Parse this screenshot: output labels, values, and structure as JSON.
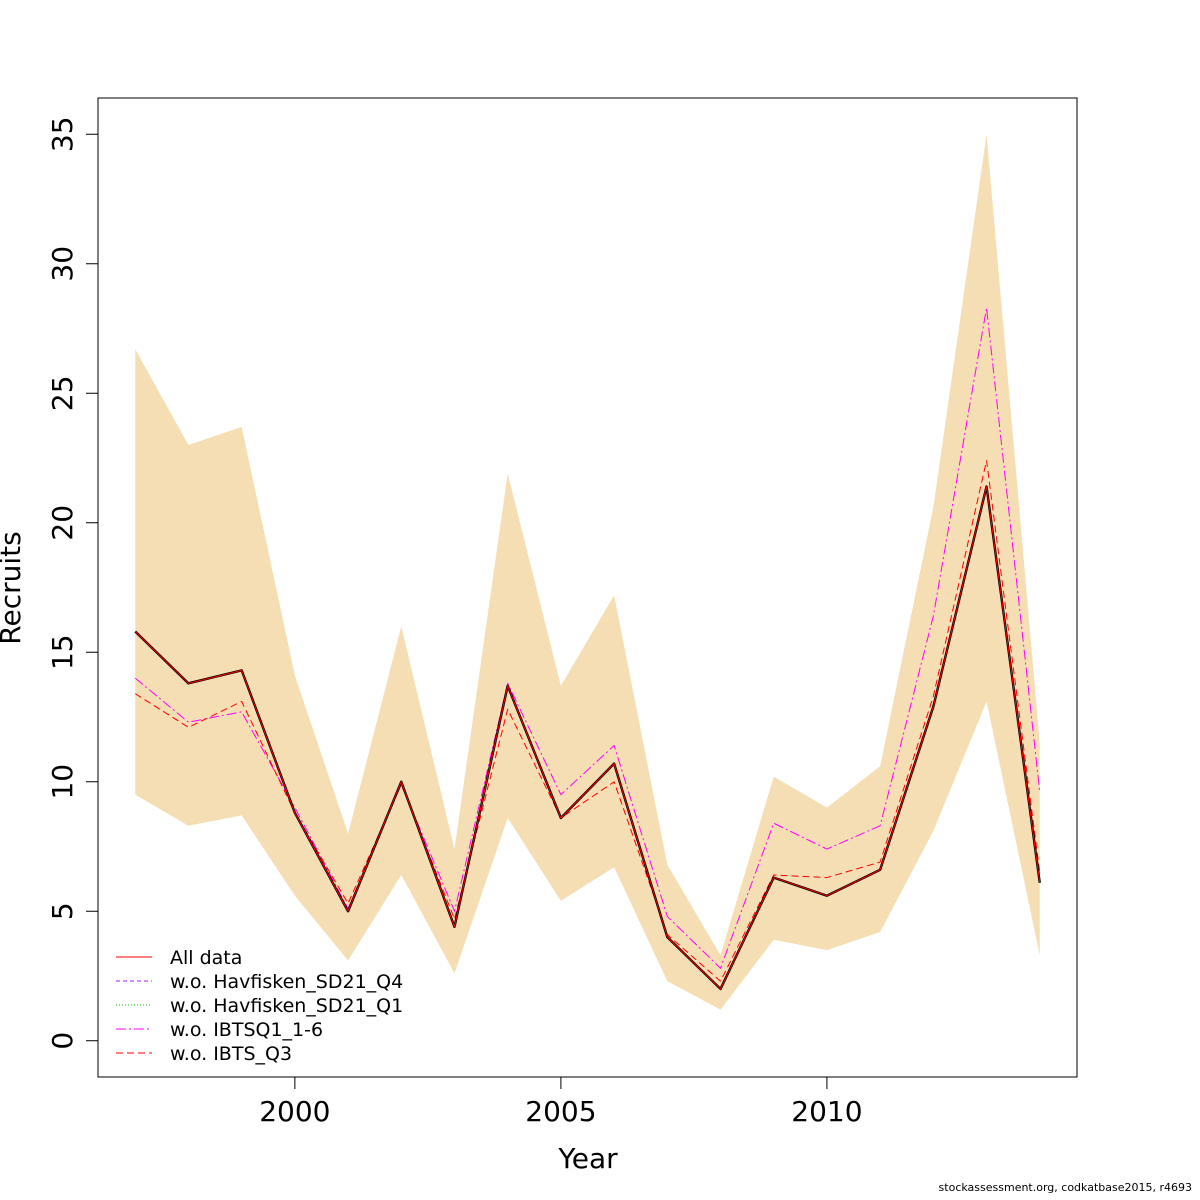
{
  "footer": "stockassessment.org, codkatbase2015, r4693",
  "chart_data": {
    "type": "line",
    "xlabel": "Year",
    "ylabel": "Recruits",
    "xlim": [
      1996.3,
      2014.7
    ],
    "ylim": [
      -1.4,
      36.4
    ],
    "xticks": [
      2000,
      2005,
      2010
    ],
    "yticks": [
      0,
      5,
      10,
      15,
      20,
      25,
      30,
      35
    ],
    "legend_position": "bottom-left",
    "x": [
      1997,
      1998,
      1999,
      2000,
      2001,
      2002,
      2003,
      2004,
      2005,
      2006,
      2007,
      2008,
      2009,
      2010,
      2011,
      2012,
      2013,
      2014
    ],
    "band": {
      "color": "#F5DEB3",
      "lower": [
        9.5,
        8.3,
        8.7,
        5.6,
        3.1,
        6.4,
        2.6,
        8.6,
        5.4,
        6.7,
        2.3,
        1.2,
        3.9,
        3.5,
        4.2,
        8.1,
        13.1,
        3.3
      ],
      "upper": [
        26.7,
        23.0,
        23.7,
        14.1,
        8.0,
        16.0,
        7.4,
        21.9,
        13.7,
        17.2,
        6.8,
        3.3,
        10.2,
        9.0,
        10.6,
        20.6,
        35.0,
        11.5
      ]
    },
    "series": [
      {
        "name": "w.o. IBTSQ1_1-6",
        "color": "#FF00FF",
        "dash": "10 3 2 3",
        "values": [
          14.0,
          12.3,
          12.7,
          9.0,
          5.1,
          9.9,
          5.0,
          13.8,
          9.5,
          11.4,
          4.8,
          2.8,
          8.4,
          7.4,
          8.3,
          16.4,
          28.3,
          9.6
        ]
      },
      {
        "name": "w.o. IBTS_Q3",
        "color": "#FF0000",
        "dash": "7 4",
        "values": [
          13.4,
          12.1,
          13.1,
          8.8,
          5.3,
          9.9,
          4.7,
          12.8,
          8.6,
          10.0,
          4.1,
          2.3,
          6.4,
          6.3,
          6.9,
          13.3,
          22.4,
          6.5
        ]
      },
      {
        "name": "w.o. Havfisken_SD21_Q4",
        "color": "#A020F0",
        "dash": "4 3",
        "values": [
          15.8,
          13.8,
          14.3,
          8.8,
          5.0,
          10.0,
          4.4,
          13.7,
          8.6,
          10.7,
          4.0,
          2.0,
          6.3,
          5.6,
          6.6,
          12.9,
          21.4,
          6.1
        ]
      },
      {
        "name": "w.o. Havfisken_SD21_Q1",
        "color": "#00C000",
        "dash": "1 2",
        "values": [
          15.8,
          13.8,
          14.3,
          8.8,
          5.0,
          10.0,
          4.4,
          13.7,
          8.6,
          10.7,
          4.0,
          2.0,
          6.3,
          5.6,
          6.6,
          12.9,
          21.4,
          6.1
        ]
      },
      {
        "name": "",
        "color": "#000000",
        "dash": "",
        "width": 2.4,
        "values": [
          15.8,
          13.8,
          14.3,
          8.8,
          5.0,
          10.0,
          4.4,
          13.7,
          8.6,
          10.7,
          4.0,
          2.0,
          6.3,
          5.6,
          6.6,
          12.9,
          21.4,
          6.1
        ]
      },
      {
        "name": "All data",
        "color": "#FF0000",
        "dash": "",
        "values": [
          15.8,
          13.8,
          14.3,
          8.8,
          5.0,
          10.0,
          4.4,
          13.7,
          8.6,
          10.7,
          4.0,
          2.0,
          6.3,
          5.6,
          6.6,
          12.9,
          21.4,
          6.1
        ]
      }
    ],
    "legend": [
      {
        "label": "All data",
        "color": "#FF0000",
        "dash": ""
      },
      {
        "label": "w.o. Havfisken_SD21_Q4",
        "color": "#A020F0",
        "dash": "4 3"
      },
      {
        "label": "w.o. Havfisken_SD21_Q1",
        "color": "#00C000",
        "dash": "1 2"
      },
      {
        "label": "w.o. IBTSQ1_1-6",
        "color": "#FF00FF",
        "dash": "10 3 2 3"
      },
      {
        "label": "w.o. IBTS_Q3",
        "color": "#FF0000",
        "dash": "7 4"
      }
    ]
  }
}
